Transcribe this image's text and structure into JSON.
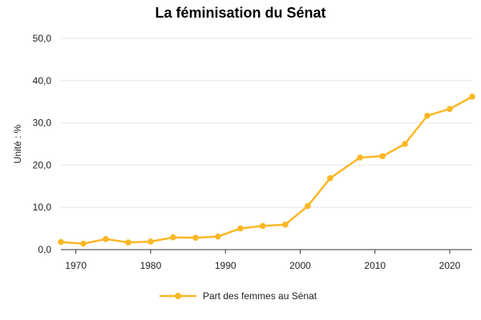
{
  "chart_data": {
    "type": "line",
    "title": "La féminisation du Sénat",
    "xlabel": "",
    "ylabel": "Unité : %",
    "xlim": [
      1968,
      2023
    ],
    "ylim": [
      0,
      50
    ],
    "x_ticks": [
      "1970",
      "1980",
      "1990",
      "2000",
      "2010",
      "2020"
    ],
    "y_ticks": [
      "0,0",
      "10,0",
      "20,0",
      "30,0",
      "40,0",
      "50,0"
    ],
    "grid": "horizontal",
    "legend": "bottom",
    "colors": {
      "series": "#FBB725",
      "grid": "#e6e6e6",
      "axis": "#333333"
    },
    "series": [
      {
        "name": "Part des femmes au Sénat",
        "x": [
          1968,
          1971,
          1974,
          1977,
          1980,
          1983,
          1986,
          1989,
          1992,
          1995,
          1998,
          2001,
          2004,
          2008,
          2011,
          2014,
          2017,
          2020,
          2023
        ],
        "values": [
          1.8,
          1.4,
          2.5,
          1.7,
          1.9,
          2.9,
          2.8,
          3.1,
          5.0,
          5.6,
          5.9,
          10.3,
          16.9,
          21.8,
          22.1,
          25.0,
          31.7,
          33.3,
          36.2
        ]
      }
    ]
  }
}
